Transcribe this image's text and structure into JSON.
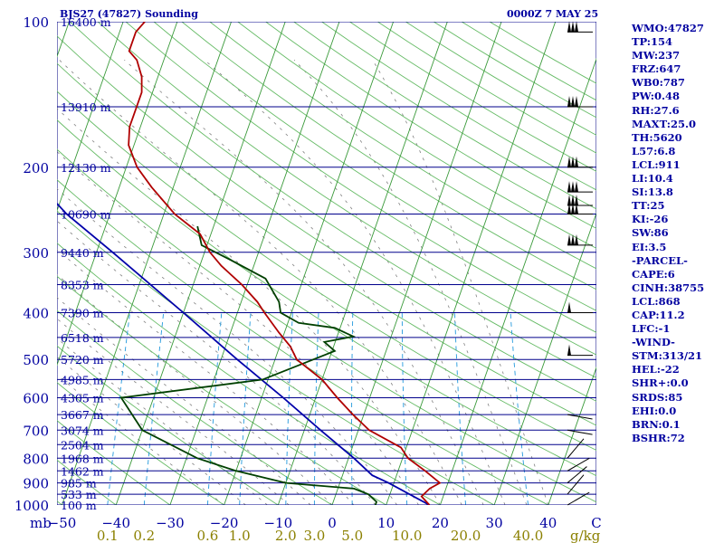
{
  "header": {
    "station": "BJS27 (47827) Sounding",
    "time": "0000Z  7 MAY 25"
  },
  "stats": [
    "WMO:47827",
    "TP:154",
    "MW:237",
    "FRZ:647",
    "WB0:787",
    "PW:0.48",
    "RH:27.6",
    "MAXT:25.0",
    "TH:5620",
    "L57:6.8",
    "LCL:911",
    "LI:10.4",
    "SI:13.8",
    "TT:25",
    "KI:-26",
    "SW:86",
    "EI:3.5",
    "-PARCEL-",
    "CAPE:6",
    "CINH:38755",
    "LCL:868",
    "CAP:11.2",
    "LFC:-1",
    "-WIND-",
    "STM:313/21",
    "HEL:-22",
    "SHR+:0.0",
    "SRDS:85",
    "EHI:0.0",
    "BRN:0.1",
    "BSHR:72"
  ],
  "colors": {
    "isobar": "#00008b",
    "isotherm": "#3a9a3a",
    "dry_adiabat": "#66bb66",
    "moist_adiabat": "#808080",
    "mixing_ratio": "#2299dd",
    "temperature": "#b00000",
    "dewpoint": "#004000",
    "parcel": "#0000aa",
    "wind": "#000000",
    "stats_text": "#0000a0"
  },
  "chart_data": {
    "type": "skew-t",
    "xlabel_unit": "mb",
    "mixing_ratio_unit": "g/kg",
    "pressure_ticks": [
      100,
      200,
      300,
      400,
      500,
      600,
      700,
      800,
      900,
      1000
    ],
    "temperature_ticks": [
      -50,
      -40,
      -30,
      -20,
      -10,
      0,
      10,
      20,
      30,
      40,
      "C"
    ],
    "mixing_ratio_labels": [
      "0.1",
      "0.2",
      "0.6",
      "1.0",
      "2.0",
      "3.0",
      "5.0",
      "10.0",
      "20.0",
      "40.0"
    ],
    "mixing_ratio_values": [
      0.1,
      0.2,
      0.6,
      1.0,
      2.0,
      3.0,
      5.0,
      10.0,
      20.0,
      40.0
    ],
    "height_labels": [
      {
        "p": 100,
        "label": "16400 m"
      },
      {
        "p": 150,
        "label": "13910 m"
      },
      {
        "p": 200,
        "label": "12130 m"
      },
      {
        "p": 250,
        "label": "10690 m"
      },
      {
        "p": 300,
        "label": "9440 m"
      },
      {
        "p": 350,
        "label": "8353 m"
      },
      {
        "p": 400,
        "label": "7390 m"
      },
      {
        "p": 450,
        "label": "6518 m"
      },
      {
        "p": 500,
        "label": "5720 m"
      },
      {
        "p": 550,
        "label": "4985 m"
      },
      {
        "p": 600,
        "label": "4305 m"
      },
      {
        "p": 650,
        "label": "3667 m"
      },
      {
        "p": 700,
        "label": "3074 m"
      },
      {
        "p": 750,
        "label": "2504 m"
      },
      {
        "p": 800,
        "label": "1968 m"
      },
      {
        "p": 850,
        "label": "1462 m"
      },
      {
        "p": 900,
        "label": "985 m"
      },
      {
        "p": 950,
        "label": "533 m"
      },
      {
        "p": 1000,
        "label": "100 m"
      }
    ],
    "temperature": [
      {
        "p": 1000,
        "t": 18
      },
      {
        "p": 960,
        "t": 16
      },
      {
        "p": 925,
        "t": 17
      },
      {
        "p": 900,
        "t": 18.5
      },
      {
        "p": 850,
        "t": 15
      },
      {
        "p": 800,
        "t": 11
      },
      {
        "p": 760,
        "t": 9
      },
      {
        "p": 700,
        "t": 2
      },
      {
        "p": 650,
        "t": -2
      },
      {
        "p": 600,
        "t": -6
      },
      {
        "p": 550,
        "t": -10
      },
      {
        "p": 500,
        "t": -16
      },
      {
        "p": 470,
        "t": -18
      },
      {
        "p": 440,
        "t": -21
      },
      {
        "p": 400,
        "t": -25
      },
      {
        "p": 380,
        "t": -27
      },
      {
        "p": 350,
        "t": -31
      },
      {
        "p": 320,
        "t": -36
      },
      {
        "p": 300,
        "t": -39
      },
      {
        "p": 275,
        "t": -42
      },
      {
        "p": 250,
        "t": -48
      },
      {
        "p": 220,
        "t": -54
      },
      {
        "p": 200,
        "t": -58
      },
      {
        "p": 180,
        "t": -61
      },
      {
        "p": 165,
        "t": -62
      },
      {
        "p": 150,
        "t": -62
      },
      {
        "p": 140,
        "t": -62
      },
      {
        "p": 130,
        "t": -63
      },
      {
        "p": 120,
        "t": -65
      },
      {
        "p": 115,
        "t": -67
      },
      {
        "p": 105,
        "t": -67
      },
      {
        "p": 100,
        "t": -66
      }
    ],
    "dewpoint": [
      {
        "p": 1000,
        "td": 8
      },
      {
        "p": 985,
        "td": 8
      },
      {
        "p": 950,
        "td": 6
      },
      {
        "p": 925,
        "td": 3
      },
      {
        "p": 900,
        "td": -10
      },
      {
        "p": 850,
        "td": -20
      },
      {
        "p": 800,
        "td": -28
      },
      {
        "p": 700,
        "td": -40
      },
      {
        "p": 600,
        "td": -46
      },
      {
        "p": 550,
        "td": -21
      },
      {
        "p": 480,
        "td": -9.5
      },
      {
        "p": 460,
        "td": -12
      },
      {
        "p": 448,
        "td": -7
      },
      {
        "p": 430,
        "td": -11
      },
      {
        "p": 420,
        "td": -18
      },
      {
        "p": 400,
        "td": -22
      },
      {
        "p": 380,
        "td": -23
      },
      {
        "p": 340,
        "td": -27
      },
      {
        "p": 310,
        "td": -35
      },
      {
        "p": 290,
        "td": -41
      },
      {
        "p": 265,
        "td": -43
      }
    ],
    "parcel": [
      {
        "p": 1000,
        "t": 18
      },
      {
        "p": 900,
        "t": 9
      },
      {
        "p": 868,
        "t": 5.5
      },
      {
        "p": 800,
        "t": 1
      },
      {
        "p": 700,
        "t": -7
      },
      {
        "p": 600,
        "t": -16
      },
      {
        "p": 500,
        "t": -27
      },
      {
        "p": 400,
        "t": -40
      },
      {
        "p": 300,
        "t": -57
      },
      {
        "p": 250,
        "t": -68
      },
      {
        "p": 200,
        "t": -79
      },
      {
        "p": 150,
        "t": -93
      },
      {
        "p": 120,
        "t": -103
      },
      {
        "p": 110,
        "t": -107
      }
    ],
    "wind_barb_pressures": [
      105,
      150,
      200,
      225,
      240,
      250,
      290,
      400,
      490,
      650,
      700,
      800,
      850,
      900,
      950,
      1000
    ]
  }
}
